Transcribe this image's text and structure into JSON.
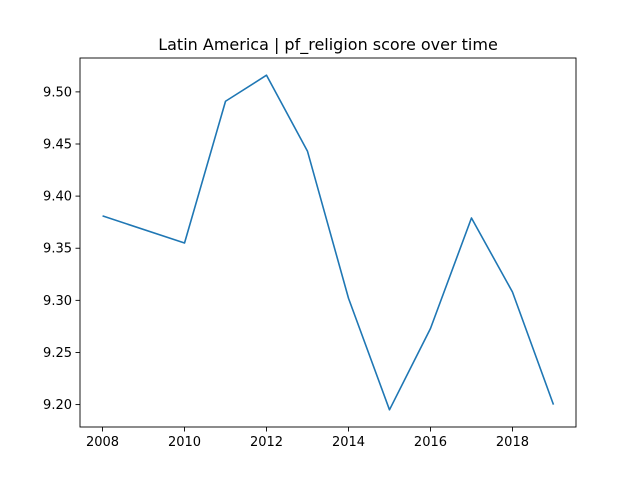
{
  "chart_data": {
    "type": "line",
    "title": "Latin America | pf_religion score over time",
    "xlabel": "",
    "ylabel": "",
    "xlim": [
      2007.45,
      2019.55
    ],
    "ylim": [
      9.1785,
      9.5325
    ],
    "x_ticks": [
      2008,
      2010,
      2012,
      2014,
      2016,
      2018
    ],
    "y_ticks": [
      9.2,
      9.25,
      9.3,
      9.35,
      9.4,
      9.45,
      9.5
    ],
    "x_tick_labels": [
      "2008",
      "2010",
      "2012",
      "2014",
      "2016",
      "2018"
    ],
    "y_tick_labels": [
      "9.20",
      "9.25",
      "9.30",
      "9.35",
      "9.40",
      "9.45",
      "9.50"
    ],
    "grid": false,
    "line_color": "#1f77b4",
    "series": [
      {
        "x": [
          2008,
          2010,
          2011,
          2012,
          2013,
          2014,
          2015,
          2016,
          2017,
          2018,
          2019
        ],
        "values": [
          9.381,
          9.355,
          9.491,
          9.516,
          9.443,
          9.302,
          9.195,
          9.273,
          9.379,
          9.308,
          9.2
        ]
      }
    ]
  }
}
